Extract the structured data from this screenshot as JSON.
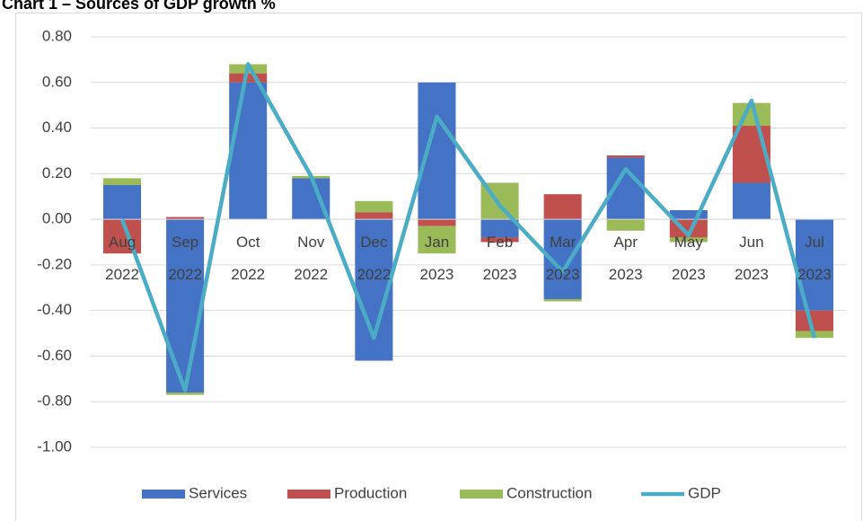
{
  "chart_data": {
    "type": "bar",
    "title": "Chart 1 – Sources of GDP growth %",
    "categories": [
      "Aug 2022",
      "Sep 2022",
      "Oct 2022",
      "Nov 2022",
      "Dec 2022",
      "Jan 2023",
      "Feb 2023",
      "Mar 2023",
      "Apr 2023",
      "May 2023",
      "Jun 2023",
      "Jul 2023"
    ],
    "series": [
      {
        "name": "Services",
        "color": "#4472c4",
        "values": [
          0.15,
          -0.76,
          0.6,
          0.18,
          -0.62,
          0.6,
          -0.08,
          -0.35,
          0.27,
          0.04,
          0.16,
          -0.4
        ]
      },
      {
        "name": "Production",
        "color": "#c0504d",
        "values": [
          -0.15,
          0.01,
          0.04,
          0.0,
          0.03,
          -0.03,
          -0.02,
          0.11,
          0.01,
          -0.08,
          0.25,
          -0.09
        ]
      },
      {
        "name": "Construction",
        "color": "#9bbb59",
        "values": [
          0.03,
          -0.01,
          0.04,
          0.01,
          0.05,
          -0.12,
          0.16,
          -0.01,
          -0.05,
          -0.02,
          0.1,
          -0.03
        ]
      },
      {
        "name": "GDP",
        "color": "#4bacc6",
        "type": "line",
        "values": [
          0.0,
          -0.75,
          0.68,
          0.19,
          -0.52,
          0.45,
          0.06,
          -0.23,
          0.22,
          -0.07,
          0.52,
          -0.52
        ]
      }
    ],
    "ylim": [
      -1.0,
      0.8
    ],
    "yticks": [
      {
        "value": 0.8,
        "label": "0.80"
      },
      {
        "value": 0.6,
        "label": "0.60"
      },
      {
        "value": 0.4,
        "label": "0.40"
      },
      {
        "value": 0.2,
        "label": "0.20"
      },
      {
        "value": 0,
        "label": "0.00"
      },
      {
        "value": -0.2,
        "label": "-0.20"
      },
      {
        "value": -0.4,
        "label": "-0.40"
      },
      {
        "value": -0.6,
        "label": "-0.60"
      },
      {
        "value": -0.8,
        "label": "-0.80"
      },
      {
        "value": -1.0,
        "label": "-1.00"
      }
    ],
    "grid": true,
    "legend": "bottom"
  }
}
